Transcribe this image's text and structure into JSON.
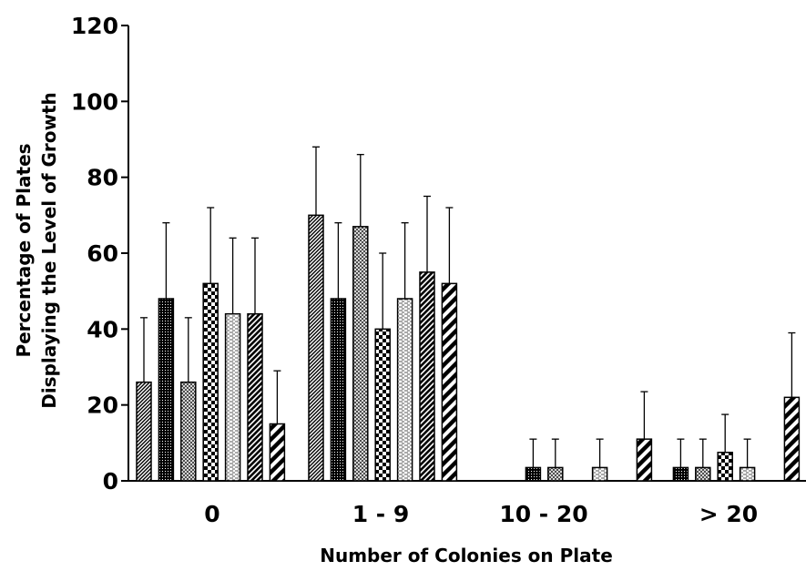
{
  "chart_data": {
    "type": "bar",
    "xlabel": "Number of Colonies on Plate",
    "ylabel_lines": [
      "Percentage of Plates",
      "Displaying the Level of Growth"
    ],
    "ylim": [
      0,
      120
    ],
    "yticks": [
      "0",
      "20",
      "40",
      "60",
      "80",
      "100",
      "120"
    ],
    "categories": [
      "0",
      "1 - 9",
      "10 - 20",
      "> 20"
    ],
    "error_bars": "upper only",
    "series": [
      {
        "values": [
          26,
          70,
          0,
          0
        ],
        "errors": [
          17,
          18,
          0,
          0
        ],
        "pattern": "diagonal-fine"
      },
      {
        "values": [
          48,
          48,
          3.5,
          3.5
        ],
        "errors": [
          20,
          20,
          7.5,
          7.5
        ],
        "pattern": "dense-dots"
      },
      {
        "values": [
          26,
          67,
          3.5,
          3.5
        ],
        "errors": [
          17,
          19,
          7.5,
          7.5
        ],
        "pattern": "crosshatch"
      },
      {
        "values": [
          52,
          40,
          0,
          7.5
        ],
        "errors": [
          20,
          20,
          0,
          10
        ],
        "pattern": "checker"
      },
      {
        "values": [
          44,
          48,
          3.5,
          3.5
        ],
        "errors": [
          20,
          20,
          7.5,
          7.5
        ],
        "pattern": "dashes"
      },
      {
        "values": [
          44,
          55,
          0,
          0
        ],
        "errors": [
          20,
          20,
          0,
          0
        ],
        "pattern": "diagonal-medium"
      },
      {
        "values": [
          15,
          52,
          11,
          22
        ],
        "errors": [
          14,
          20,
          12.5,
          17
        ],
        "pattern": "diagonal-bold"
      }
    ]
  }
}
